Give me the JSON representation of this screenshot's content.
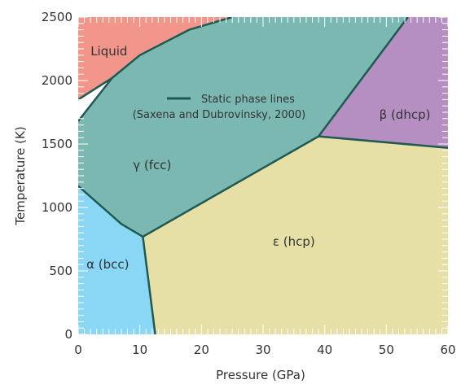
{
  "chart_data": {
    "type": "area",
    "title": "",
    "xlabel": "Pressure (GPa)",
    "ylabel": "Temperature (K)",
    "xlim": [
      0,
      60
    ],
    "ylim": [
      0,
      2500
    ],
    "xticks": [
      0,
      10,
      20,
      30,
      40,
      50,
      60
    ],
    "yticks": [
      0,
      500,
      1000,
      1500,
      2000,
      2500
    ],
    "grid": false,
    "legend": {
      "placement": "upper-center",
      "line_label": "Static phase lines",
      "citation": "(Saxena and Dubrovinsky, 2000)",
      "line_color": "#1f5a52"
    },
    "regions": [
      {
        "name": "Liquid",
        "color": "#f2958a",
        "polygon": [
          [
            0,
            1850
          ],
          [
            0,
            2500
          ],
          [
            52,
            2500
          ],
          [
            39,
            2650
          ],
          [
            25,
            2500
          ],
          [
            18,
            2400
          ],
          [
            10,
            2200
          ],
          [
            5.5,
            2020
          ],
          [
            0,
            1850
          ]
        ],
        "label_at": [
          5,
          2200
        ]
      },
      {
        "name": "γ (fcc)",
        "color": "#7bb8b1",
        "polygon": [
          [
            0,
            1680
          ],
          [
            5.5,
            2020
          ],
          [
            10,
            2200
          ],
          [
            18,
            2400
          ],
          [
            25,
            2500
          ],
          [
            53.5,
            2500
          ],
          [
            39,
            1560
          ],
          [
            10.5,
            770
          ],
          [
            7,
            870
          ],
          [
            0,
            1170
          ]
        ],
        "label_at": [
          12,
          1300
        ]
      },
      {
        "name": "α (bcc)",
        "color": "#89d6f5",
        "polygon": [
          [
            0,
            0
          ],
          [
            0,
            1170
          ],
          [
            3.5,
            1020
          ],
          [
            7,
            870
          ],
          [
            10.5,
            770
          ],
          [
            12.5,
            0
          ]
        ],
        "label_at": [
          4.8,
          520
        ]
      },
      {
        "name": "ε (hcp)",
        "color": "#e6e0a6",
        "polygon": [
          [
            12.5,
            0
          ],
          [
            10.5,
            770
          ],
          [
            39,
            1560
          ],
          [
            60,
            1470
          ],
          [
            60,
            0
          ]
        ],
        "label_at": [
          35,
          700
        ]
      },
      {
        "name": "β (dhcp)",
        "color": "#b58fc2",
        "polygon": [
          [
            39,
            1560
          ],
          [
            53.5,
            2500
          ],
          [
            60,
            2500
          ],
          [
            60,
            1470
          ]
        ],
        "label_at": [
          53,
          1700
        ]
      }
    ],
    "phase_lines": [
      [
        [
          0,
          1850
        ],
        [
          5.5,
          2020
        ],
        [
          10,
          2200
        ],
        [
          18,
          2400
        ],
        [
          25,
          2500
        ]
      ],
      [
        [
          0,
          1680
        ],
        [
          5.5,
          2020
        ]
      ],
      [
        [
          53.5,
          2500
        ],
        [
          39,
          1560
        ],
        [
          60,
          1470
        ]
      ],
      [
        [
          39,
          1560
        ],
        [
          10.5,
          770
        ],
        [
          12.5,
          0
        ]
      ],
      [
        [
          10.5,
          770
        ],
        [
          7,
          870
        ],
        [
          3.5,
          1020
        ],
        [
          0,
          1170
        ]
      ]
    ]
  }
}
